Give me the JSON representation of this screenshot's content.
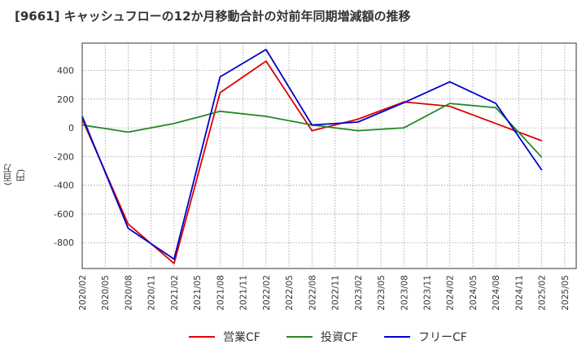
{
  "title": "[9661]  キャッシュフローの12か月移動合計の対前年同期増減額の推移",
  "chart_data": {
    "type": "line",
    "title": "[9661]  キャッシュフローの12か月移動合計の対前年同期増減額の推移",
    "ylabel": "(百万円)",
    "xlabel": "",
    "ylim": [
      -980,
      590
    ],
    "yticks": [
      400,
      200,
      0,
      -200,
      -400,
      -600,
      -800
    ],
    "ytick_labels": [
      "400",
      "200",
      "0",
      "-200",
      "-400",
      "-600",
      "-800"
    ],
    "x_ticks": [
      "2020/02",
      "2020/05",
      "2020/08",
      "2020/11",
      "2021/02",
      "2021/05",
      "2021/08",
      "2021/11",
      "2022/02",
      "2022/05",
      "2022/08",
      "2022/11",
      "2023/02",
      "2023/05",
      "2023/08",
      "2023/11",
      "2024/02",
      "2024/05",
      "2024/08",
      "2024/11",
      "2025/02",
      "2025/05"
    ],
    "x": [
      "2020/02",
      "2020/08",
      "2021/02",
      "2021/08",
      "2022/02",
      "2022/08",
      "2023/02",
      "2023/08",
      "2024/02",
      "2024/08",
      "2025/02"
    ],
    "grid": true,
    "legend_position": "bottom",
    "series": [
      {
        "name": "営業CF",
        "color": "#e00000",
        "values": [
          60,
          -670,
          -945,
          245,
          465,
          -20,
          60,
          180,
          150,
          30,
          -90
        ]
      },
      {
        "name": "投資CF",
        "color": "#228822",
        "values": [
          20,
          -30,
          30,
          115,
          80,
          20,
          -20,
          0,
          170,
          140,
          -205
        ]
      },
      {
        "name": "フリーCF",
        "color": "#0000cc",
        "values": [
          80,
          -700,
          -915,
          355,
          545,
          20,
          40,
          175,
          320,
          170,
          -295
        ]
      }
    ]
  }
}
